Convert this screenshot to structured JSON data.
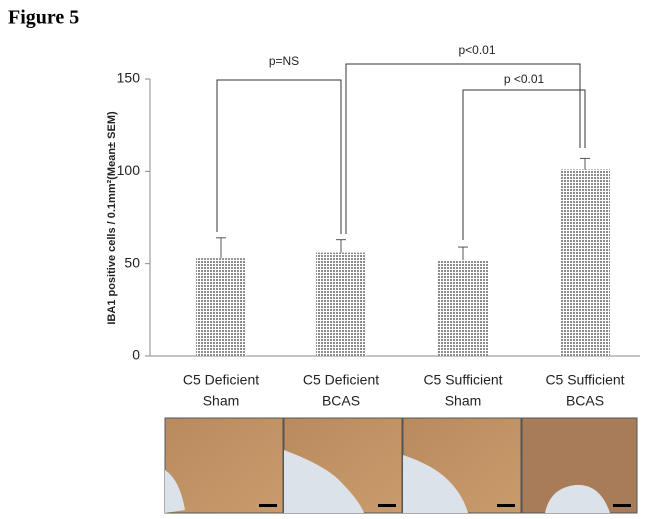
{
  "chart_data": {
    "type": "bar",
    "title": "Figure 5",
    "y_label": "IBA1 positive cells / 0.1mm²(Mean± SEM)",
    "categories": [
      [
        "C5 Deficient",
        "Sham"
      ],
      [
        "C5 Deficient",
        "BCAS"
      ],
      [
        "C5 Sufficient",
        "Sham"
      ],
      [
        "C5 Sufficient",
        "BCAS"
      ]
    ],
    "values": [
      53,
      56,
      52,
      101
    ],
    "errors": [
      11,
      7,
      7,
      6
    ],
    "color": "#8c8c8c",
    "ylim": [
      0,
      150
    ],
    "yticks": [
      0,
      50,
      100,
      150
    ],
    "grid": false,
    "annotations": [
      "p=NS",
      "p<0.01",
      "p <0.01"
    ]
  }
}
